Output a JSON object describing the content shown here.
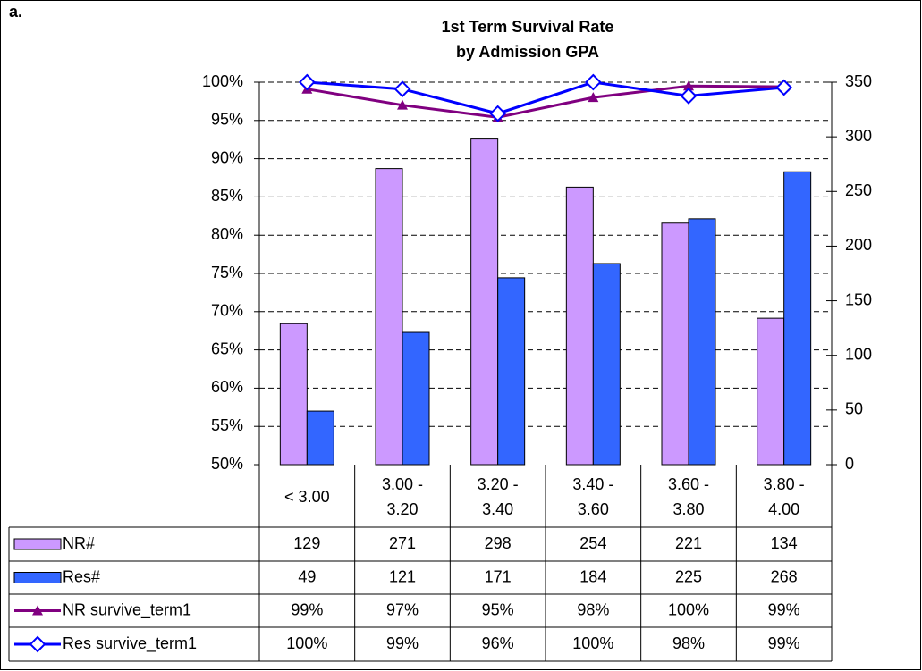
{
  "chart_data": {
    "type": "bar",
    "panel_label": "a.",
    "title": [
      "1st Term Survival Rate",
      "by Admission GPA"
    ],
    "categories": [
      "< 3.00",
      "3.00 - 3.20",
      "3.20 - 3.40",
      "3.40 - 3.60",
      "3.60 - 3.80",
      "3.80 - 4.00"
    ],
    "series": [
      {
        "name": "NR#",
        "type": "bar",
        "axis": "y2",
        "color": "#cc99ff",
        "values": [
          129,
          271,
          298,
          254,
          221,
          134
        ]
      },
      {
        "name": "Res#",
        "type": "bar",
        "axis": "y2",
        "color": "#3366ff",
        "values": [
          49,
          121,
          171,
          184,
          225,
          268
        ]
      },
      {
        "name": "NR survive_term1",
        "type": "line",
        "marker": "triangle",
        "color": "#800080",
        "values": [
          99.1,
          97.0,
          95.4,
          98.0,
          99.5,
          99.4
        ],
        "value_labels": [
          "99%",
          "97%",
          "95%",
          "98%",
          "100%",
          "99%"
        ]
      },
      {
        "name": "Res survive_term1",
        "type": "line",
        "marker": "diamond",
        "color": "#0000ff",
        "values": [
          100,
          99.1,
          95.9,
          100,
          98.2,
          99.3
        ],
        "value_labels": [
          "100%",
          "99%",
          "96%",
          "100%",
          "98%",
          "99%"
        ]
      }
    ],
    "ylim": [
      50,
      100
    ],
    "yticks": [
      {
        "value": 50,
        "label": "50%"
      },
      {
        "value": 55,
        "label": "55%"
      },
      {
        "value": 60,
        "label": "60%"
      },
      {
        "value": 65,
        "label": "65%"
      },
      {
        "value": 70,
        "label": "70%"
      },
      {
        "value": 75,
        "label": "75%"
      },
      {
        "value": 80,
        "label": "80%"
      },
      {
        "value": 85,
        "label": "85%"
      },
      {
        "value": 90,
        "label": "90%"
      },
      {
        "value": 95,
        "label": "95%"
      },
      {
        "value": 100,
        "label": "100%"
      }
    ],
    "y2lim": [
      0,
      350
    ],
    "y2ticks": [
      0,
      50,
      100,
      150,
      200,
      250,
      300,
      350
    ],
    "grid": true
  }
}
